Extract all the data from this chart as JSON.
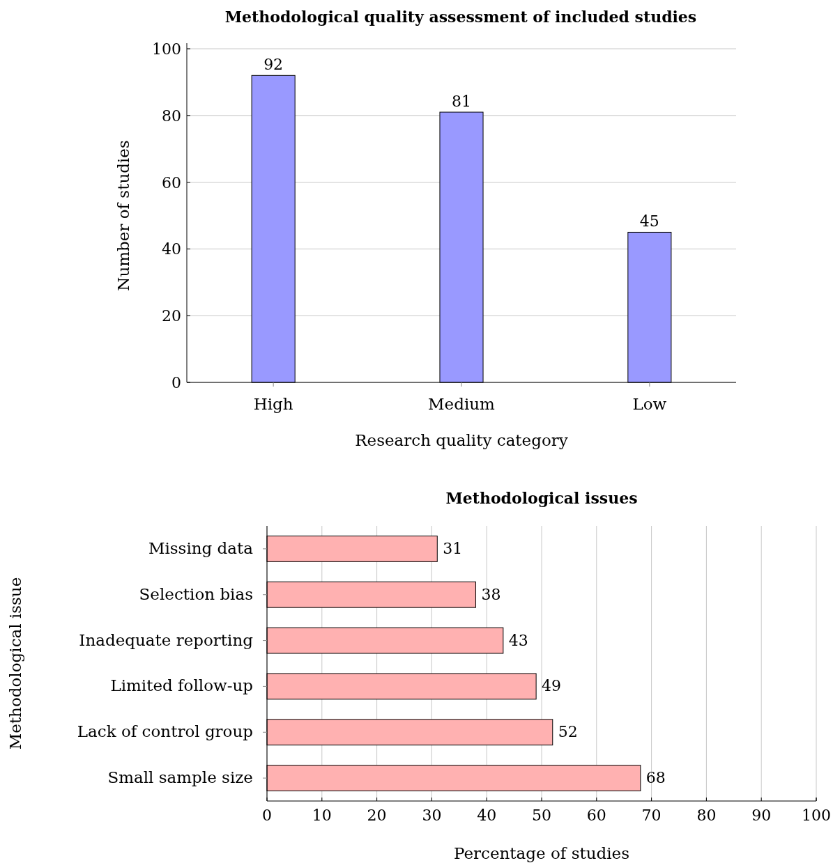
{
  "chart_data": [
    {
      "type": "bar",
      "title": "Methodological quality assessment of included studies",
      "xlabel": "Research quality category",
      "ylabel": "Number of studies",
      "categories": [
        "High",
        "Medium",
        "Low"
      ],
      "values": [
        92,
        81,
        45
      ],
      "color": "#9999ff",
      "ylim": [
        0,
        100
      ],
      "yticks": [
        0,
        20,
        40,
        60,
        80,
        100
      ],
      "grid": "y",
      "data_labels": true
    },
    {
      "type": "bar",
      "orientation": "horizontal",
      "title": "Methodological issues",
      "xlabel": "Percentage of studies",
      "ylabel": "Methodological issue",
      "categories": [
        "Missing data",
        "Selection bias",
        "Inadequate reporting",
        "Limited follow-up",
        "Lack of control group",
        "Small sample size"
      ],
      "values": [
        31,
        38,
        43,
        49,
        52,
        68
      ],
      "color": "#ffb1b1",
      "xlim": [
        0,
        100
      ],
      "xticks": [
        0,
        10,
        20,
        30,
        40,
        50,
        60,
        70,
        80,
        90,
        100
      ],
      "grid": "x",
      "data_labels": true
    }
  ]
}
